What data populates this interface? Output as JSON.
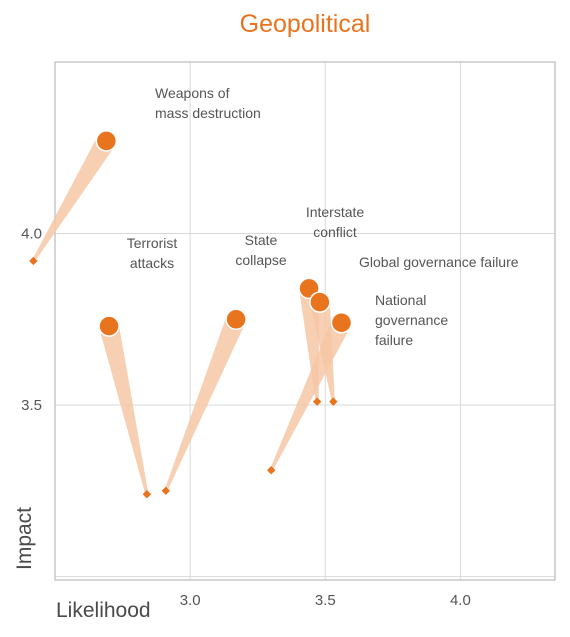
{
  "chart_data": {
    "type": "scatter",
    "title": "Geopolitical",
    "xlabel": "Likelihood",
    "ylabel": "Impact",
    "xlim": [
      2.5,
      4.35
    ],
    "ylim": [
      2.99,
      4.5
    ],
    "x_ticks": [
      "3.0",
      "3.5",
      "4.0"
    ],
    "y_ticks": [
      "3.5",
      "4.0"
    ],
    "x_tick_values": [
      3.0,
      3.5,
      4.0
    ],
    "y_tick_values": [
      3.5,
      4.0
    ],
    "x_grid_values": [
      2.5,
      3.0,
      3.5,
      4.0
    ],
    "y_grid_values": [
      3.0,
      3.5,
      4.0
    ],
    "grid": true,
    "colors": {
      "accent": "#e8741e",
      "trail": "#f6c7a4",
      "grid": "#d9d9d9",
      "frame": "#bbbbbb"
    },
    "points": [
      {
        "label": [
          "Weapons of",
          "mass destruction"
        ],
        "x": 2.69,
        "y": 4.27,
        "prev_x": 2.42,
        "prev_y": 3.92
      },
      {
        "label": [
          "Terrorist",
          "attacks"
        ],
        "x": 2.7,
        "y": 3.73,
        "prev_x": 2.84,
        "prev_y": 3.24
      },
      {
        "label": [
          "State",
          "collapse"
        ],
        "x": 3.17,
        "y": 3.75,
        "prev_x": 2.91,
        "prev_y": 3.25
      },
      {
        "label": [
          "Interstate",
          "conflict"
        ],
        "x": 3.44,
        "y": 3.84,
        "prev_x": 3.47,
        "prev_y": 3.51
      },
      {
        "label": [
          "Global governance failure"
        ],
        "x": 3.48,
        "y": 3.8,
        "prev_x": 3.53,
        "prev_y": 3.51
      },
      {
        "label": [
          "National",
          "governance",
          "failure"
        ],
        "x": 3.56,
        "y": 3.74,
        "prev_x": 3.3,
        "prev_y": 3.31
      }
    ]
  }
}
